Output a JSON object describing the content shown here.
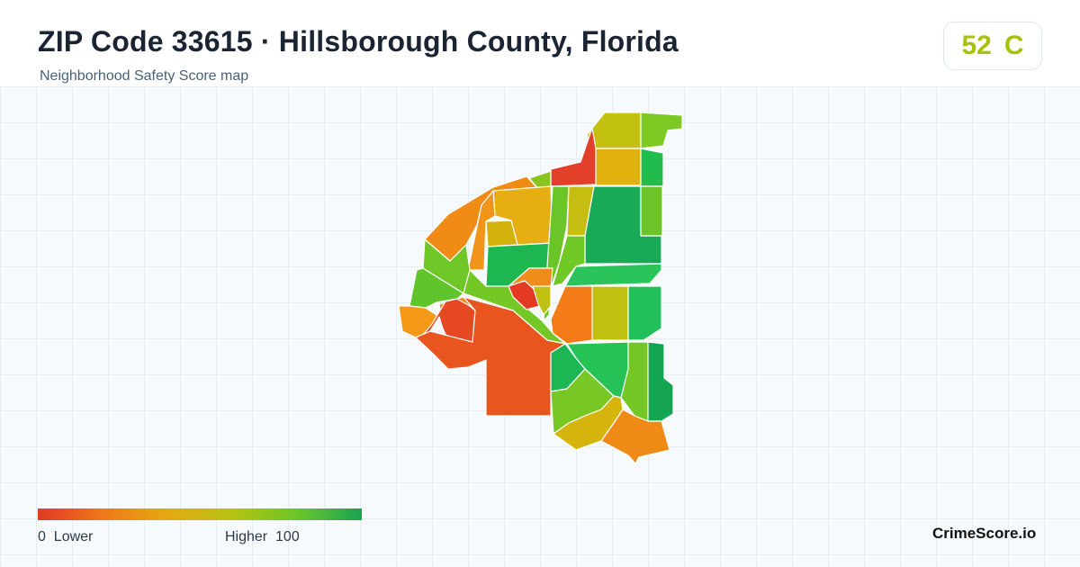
{
  "header": {
    "title": "ZIP Code 33615 · Hillsborough County, Florida",
    "subtitle": "Neighborhood Safety Score map"
  },
  "score": {
    "value": "52",
    "grade": "C",
    "color": "#a6c20a"
  },
  "legend": {
    "low_value": "0",
    "low_label": "Lower",
    "high_label": "Higher",
    "high_value": "100",
    "colors": [
      "#e03a24",
      "#f0781a",
      "#e6a812",
      "#b6c312",
      "#6cc528",
      "#18a454"
    ]
  },
  "brand": "CrimeScore.io",
  "map": {
    "regions": [
      {
        "id": "r1",
        "score": 18,
        "color": "#e4431f"
      },
      {
        "id": "r2",
        "score": 8,
        "color": "#e3402a"
      },
      {
        "id": "r3",
        "score": 48,
        "color": "#c2c10f"
      },
      {
        "id": "r4",
        "score": 66,
        "color": "#7ec923"
      },
      {
        "id": "r5",
        "score": 56,
        "color": "#e2b20f"
      },
      {
        "id": "r6",
        "score": 82,
        "color": "#22bc4e"
      },
      {
        "id": "r7",
        "score": 64,
        "color": "#88c51f"
      },
      {
        "id": "r8",
        "score": 92,
        "color": "#16a858"
      },
      {
        "id": "r9",
        "score": 70,
        "color": "#6cc528"
      },
      {
        "id": "r10",
        "score": 84,
        "color": "#1eb650"
      },
      {
        "id": "r11",
        "score": 56,
        "color": "#e6ae12"
      },
      {
        "id": "r12",
        "score": 40,
        "color": "#f08b16"
      },
      {
        "id": "r13",
        "score": 30,
        "color": "#f1941a"
      },
      {
        "id": "r14",
        "score": 52,
        "color": "#d4b20e"
      },
      {
        "id": "r15",
        "score": 50,
        "color": "#c6bd12"
      },
      {
        "id": "r16",
        "score": 90,
        "color": "#18aa56"
      },
      {
        "id": "r17",
        "score": 72,
        "color": "#6cc528"
      },
      {
        "id": "r18",
        "score": 36,
        "color": "#f08c1a"
      },
      {
        "id": "r19",
        "score": 10,
        "color": "#e43a24"
      },
      {
        "id": "r20",
        "score": 30,
        "color": "#f0861a"
      },
      {
        "id": "r21",
        "score": 76,
        "color": "#70c827"
      },
      {
        "id": "r22",
        "score": 20,
        "color": "#e64b1f"
      },
      {
        "id": "r23",
        "score": 36,
        "color": "#f08617"
      },
      {
        "id": "r24",
        "score": 80,
        "color": "#2ac45a"
      },
      {
        "id": "r25",
        "score": 88,
        "color": "#1aae55"
      },
      {
        "id": "r26",
        "score": 34,
        "color": "#f37c18"
      },
      {
        "id": "r27",
        "score": 50,
        "color": "#c0c012"
      },
      {
        "id": "r28",
        "score": 86,
        "color": "#22c05a"
      },
      {
        "id": "r29",
        "score": 82,
        "color": "#26c255"
      },
      {
        "id": "r30",
        "score": 70,
        "color": "#74c825"
      },
      {
        "id": "r31",
        "score": 86,
        "color": "#1cb654"
      },
      {
        "id": "r32",
        "score": 90,
        "color": "#14a452"
      },
      {
        "id": "r33",
        "score": 66,
        "color": "#78c724"
      },
      {
        "id": "r34",
        "score": 52,
        "color": "#d6b40e"
      },
      {
        "id": "r35",
        "score": 40,
        "color": "#f08a17"
      },
      {
        "id": "r36",
        "score": 50,
        "color": "#e0b40f"
      },
      {
        "id": "r37",
        "score": 70,
        "color": "#6ec726"
      },
      {
        "id": "r38",
        "score": 74,
        "color": "#60c52c"
      },
      {
        "id": "r39",
        "score": 42,
        "color": "#f59a18"
      },
      {
        "id": "r40",
        "score": 12,
        "color": "#e64824"
      },
      {
        "id": "r41",
        "score": 22,
        "color": "#e9551f"
      }
    ]
  }
}
